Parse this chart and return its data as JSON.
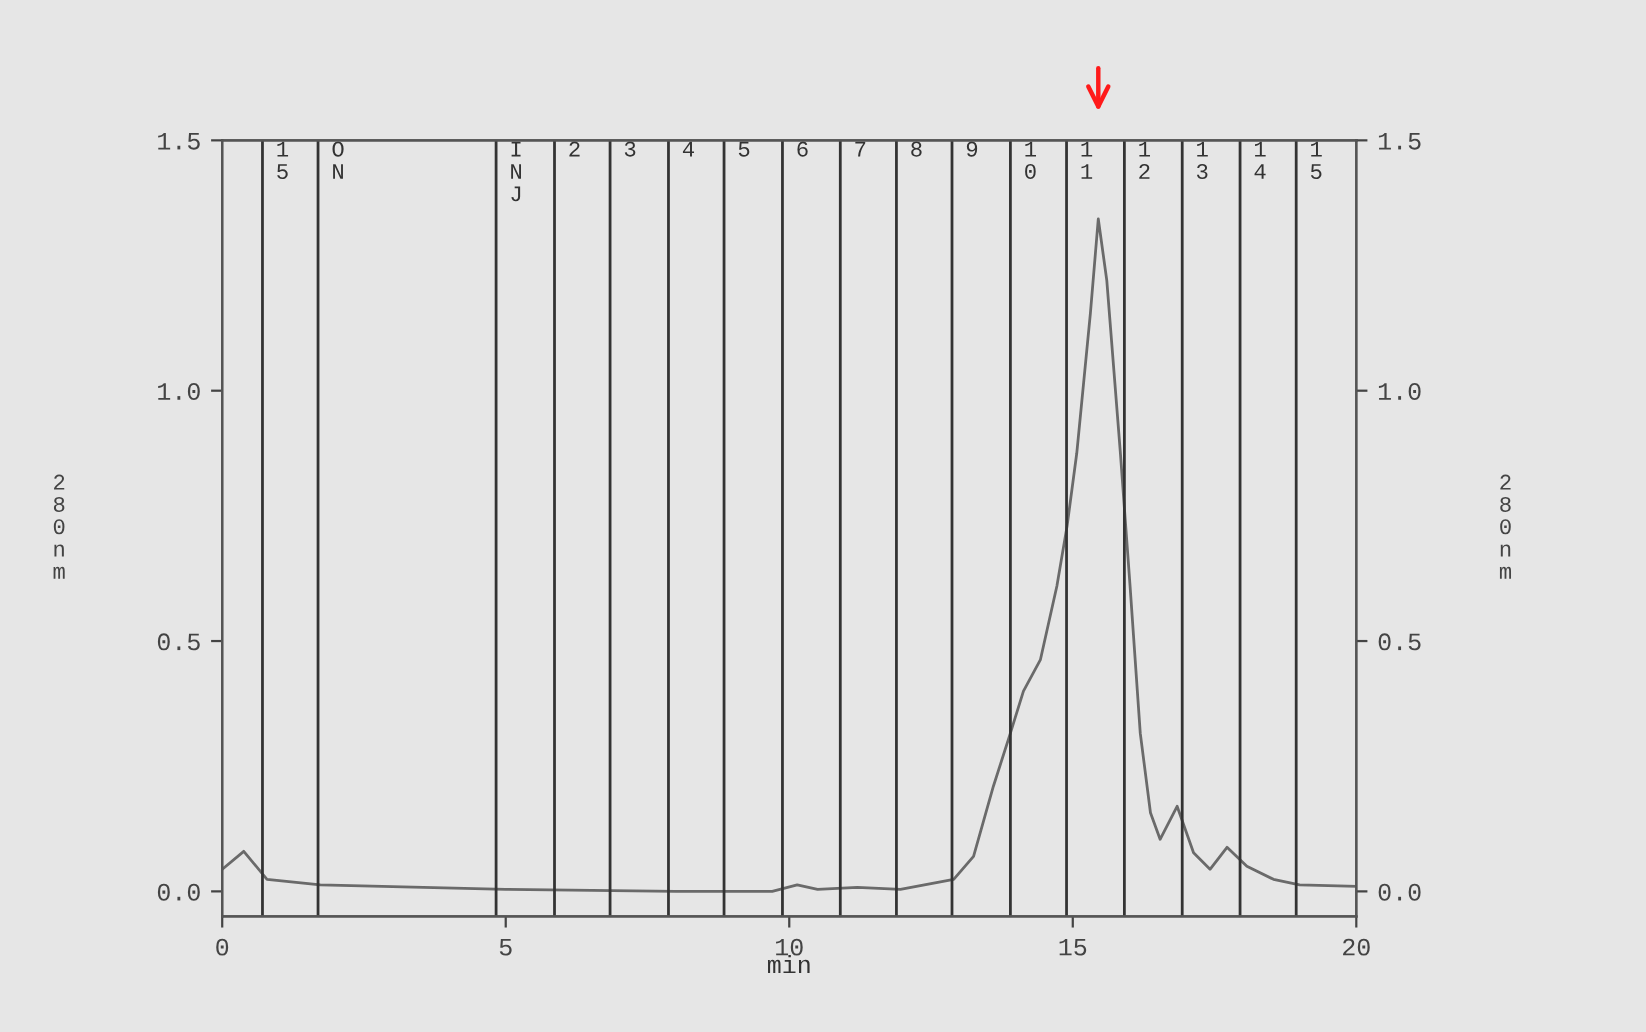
{
  "chart_data": {
    "type": "line",
    "xlabel": "min",
    "ylabel": "280nm",
    "y2label": "280nm",
    "x": [
      0,
      0.38,
      0.79,
      1.73,
      5,
      8,
      9.7,
      10.14,
      10.5,
      11.2,
      11.96,
      12.9,
      13.25,
      13.6,
      13.9,
      14.13,
      14.43,
      14.72,
      14.9,
      15.07,
      15.31,
      15.45,
      15.6,
      15.84,
      16.01,
      16.19,
      16.37,
      16.54,
      16.84,
      17.13,
      17.42,
      17.72,
      18.07,
      18.54,
      19.0,
      20
    ],
    "series": [
      {
        "color": "#6a6a6a",
        "values": [
          0.044,
          0.08,
          0.024,
          0.013,
          0.004,
          0.0,
          0.0,
          0.013,
          0.004,
          0.008,
          0.004,
          0.024,
          0.07,
          0.21,
          0.316,
          0.4,
          0.463,
          0.61,
          0.73,
          0.875,
          1.154,
          1.343,
          1.22,
          0.875,
          0.61,
          0.316,
          0.157,
          0.104,
          0.17,
          0.077,
          0.044,
          0.088,
          0.05,
          0.024,
          0.013,
          0.01
        ]
      }
    ],
    "xlim": [
      0,
      20
    ],
    "xticks": [
      0,
      5,
      10,
      15,
      20
    ],
    "ylim": [
      -0.05,
      1.5
    ],
    "yticks": [
      {
        "value": 0,
        "label": "0.0"
      },
      0.5,
      {
        "value": 1,
        "label": "1.0"
      },
      1.5
    ],
    "y2lim": [
      -0.05,
      1.5
    ],
    "y2ticks": [
      {
        "value": 0,
        "label": "0.0"
      },
      0.5,
      {
        "value": 1,
        "label": "1.0"
      },
      1.5
    ],
    "grid": false,
    "legend": false,
    "marker": "none",
    "line_style": "solid",
    "ref_lines": [
      {
        "axis": "x",
        "value": 0.71,
        "color": "#333333"
      },
      {
        "axis": "x",
        "value": 1.69,
        "color": "#333333"
      },
      {
        "axis": "x",
        "value": 4.83,
        "color": "#333333"
      },
      {
        "axis": "x",
        "value": 5.86,
        "color": "#333333"
      },
      {
        "axis": "x",
        "value": 6.84,
        "color": "#333333"
      },
      {
        "axis": "x",
        "value": 7.87,
        "color": "#333333"
      },
      {
        "axis": "x",
        "value": 8.85,
        "color": "#333333"
      },
      {
        "axis": "x",
        "value": 9.88,
        "color": "#333333"
      },
      {
        "axis": "x",
        "value": 10.9,
        "color": "#333333"
      },
      {
        "axis": "x",
        "value": 11.89,
        "color": "#333333"
      },
      {
        "axis": "x",
        "value": 12.87,
        "color": "#333333"
      },
      {
        "axis": "x",
        "value": 13.9,
        "color": "#333333"
      },
      {
        "axis": "x",
        "value": 14.89,
        "color": "#333333"
      },
      {
        "axis": "x",
        "value": 15.91,
        "color": "#333333"
      },
      {
        "axis": "x",
        "value": 16.93,
        "color": "#333333"
      },
      {
        "axis": "x",
        "value": 17.95,
        "color": "#333333"
      },
      {
        "axis": "x",
        "value": 18.94,
        "color": "#333333"
      }
    ],
    "annotations": [
      {
        "text": "15",
        "x": 0.71,
        "y": 1.5
      },
      {
        "text": "ON",
        "x": 1.69,
        "y": 1.5
      },
      {
        "text": "INJ",
        "x": 4.83,
        "y": 1.5
      },
      {
        "text": "2",
        "x": 5.86,
        "y": 1.5
      },
      {
        "text": "3",
        "x": 6.84,
        "y": 1.5
      },
      {
        "text": "4",
        "x": 7.87,
        "y": 1.5
      },
      {
        "text": "5",
        "x": 8.85,
        "y": 1.5
      },
      {
        "text": "6",
        "x": 9.88,
        "y": 1.5
      },
      {
        "text": "7",
        "x": 10.9,
        "y": 1.5
      },
      {
        "text": "8",
        "x": 11.89,
        "y": 1.5
      },
      {
        "text": "9",
        "x": 12.87,
        "y": 1.5
      },
      {
        "text": "10",
        "x": 13.9,
        "y": 1.5
      },
      {
        "text": "11",
        "x": 14.89,
        "y": 1.5
      },
      {
        "text": "12",
        "x": 15.91,
        "y": 1.5
      },
      {
        "text": "13",
        "x": 16.93,
        "y": 1.5
      },
      {
        "text": "14",
        "x": 17.95,
        "y": 1.5
      },
      {
        "text": "15",
        "x": 18.94,
        "y": 1.5
      }
    ]
  }
}
